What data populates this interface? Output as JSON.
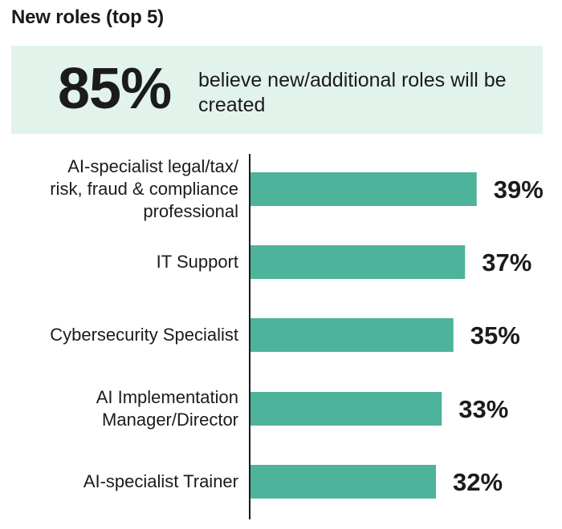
{
  "header": {
    "title": "New roles (top 5)"
  },
  "highlight": {
    "value": "85%",
    "text": "believe new/additional roles will be created"
  },
  "colors": {
    "bar": "#4db39a",
    "highlight_bg": "#e2f3ec",
    "axis": "#1b1b1b"
  },
  "chart_data": {
    "type": "bar",
    "orientation": "horizontal",
    "title": "New roles (top 5)",
    "categories": [
      "AI-specialist legal/tax/ risk, fraud & compliance professional",
      "IT Support",
      "Cybersecurity Specialist",
      "AI Implementation Manager/Director",
      "AI-specialist Trainer"
    ],
    "category_lines": [
      [
        "AI-specialist legal/tax/",
        "risk, fraud & compliance",
        "professional"
      ],
      [
        "IT Support"
      ],
      [
        "Cybersecurity Specialist"
      ],
      [
        "AI Implementation",
        "Manager/Director"
      ],
      [
        "AI-specialist Trainer"
      ]
    ],
    "values": [
      39,
      37,
      35,
      33,
      32
    ],
    "value_labels": [
      "39%",
      "37%",
      "35%",
      "33%",
      "32%"
    ],
    "unit": "%",
    "xlim": [
      0,
      40
    ],
    "grid": false
  }
}
